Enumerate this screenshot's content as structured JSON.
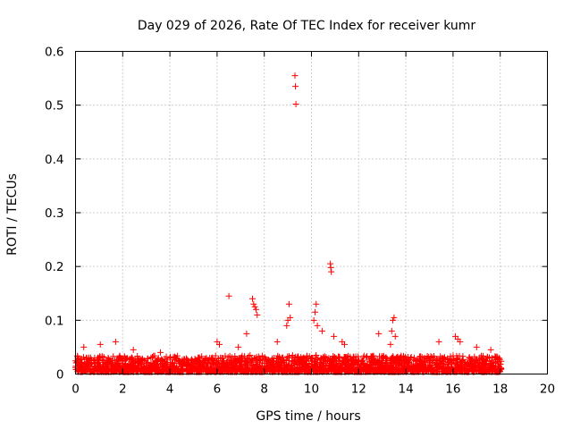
{
  "chart_data": {
    "type": "scatter",
    "title": "Day 029 of 2026, Rate Of TEC Index for receiver kumr",
    "xlabel": "GPS time / hours",
    "ylabel": "ROTI / TECUs",
    "xlim": [
      0,
      20
    ],
    "ylim": [
      0,
      0.6
    ],
    "xticks": [
      0,
      2,
      4,
      6,
      8,
      10,
      12,
      14,
      16,
      18,
      20
    ],
    "yticks": [
      0,
      0.1,
      0.2,
      0.3,
      0.4,
      0.5,
      0.6
    ],
    "grid": true,
    "marker": "plus",
    "color": "#ff0000",
    "series": [
      {
        "x": [
          0.0,
          0.2,
          0.4,
          0.6,
          0.8,
          1.0,
          1.2,
          1.4,
          1.6,
          1.8,
          2.0,
          2.2,
          2.4,
          2.6,
          2.8,
          3.0,
          3.2,
          3.4,
          3.6,
          3.8,
          4.0,
          4.2,
          4.4,
          4.6,
          4.8,
          5.0,
          5.2,
          5.4,
          5.6,
          5.8,
          6.0,
          6.2,
          6.4,
          6.6,
          6.8,
          7.0,
          7.2,
          7.4,
          7.6,
          7.8,
          8.0,
          8.2,
          8.4,
          8.6,
          8.8,
          9.0,
          9.2,
          9.4,
          9.6,
          9.8,
          10.0,
          10.2,
          10.4,
          10.6,
          10.8,
          11.0,
          11.2,
          11.4,
          11.6,
          11.8,
          12.0,
          12.2,
          12.4,
          12.6,
          12.8,
          13.0,
          13.2,
          13.4,
          13.6,
          13.8,
          14.0,
          14.2,
          14.4,
          14.6,
          14.8,
          15.0,
          15.2,
          15.4,
          15.6,
          15.8,
          16.0,
          16.2,
          16.4,
          16.6,
          16.8,
          17.0,
          17.2,
          17.4,
          17.6,
          17.8,
          18.0,
          0.35,
          1.05,
          1.7,
          2.45,
          3.6,
          6.0,
          6.1,
          6.5,
          6.9,
          7.25,
          7.5,
          7.55,
          7.6,
          7.65,
          7.7,
          8.55,
          8.95,
          9.0,
          9.05,
          9.1,
          9.3,
          9.32,
          9.34,
          10.1,
          10.15,
          10.2,
          10.25,
          10.45,
          10.8,
          10.82,
          10.84,
          10.95,
          11.3,
          11.4,
          12.85,
          13.35,
          13.4,
          13.45,
          13.5,
          13.55,
          15.4,
          16.1,
          16.2,
          16.3,
          17.0,
          17.6,
          0.1,
          0.5,
          0.9,
          1.3,
          1.9,
          2.3,
          2.7,
          3.1,
          3.5,
          3.9,
          4.3,
          4.7,
          5.1,
          5.5,
          5.9,
          6.3,
          6.7,
          7.1,
          7.9,
          8.3,
          8.7,
          9.5,
          9.9,
          10.6,
          11.1,
          11.5,
          11.9,
          12.3,
          12.7,
          13.1,
          13.9,
          14.3,
          14.7,
          15.1,
          15.5,
          15.9,
          16.5,
          16.9,
          17.3,
          17.7
        ],
        "y": [
          0.012,
          0.02,
          0.018,
          0.025,
          0.015,
          0.03,
          0.022,
          0.028,
          0.018,
          0.02,
          0.025,
          0.015,
          0.03,
          0.02,
          0.018,
          0.012,
          0.02,
          0.025,
          0.018,
          0.022,
          0.03,
          0.02,
          0.025,
          0.028,
          0.02,
          0.022,
          0.03,
          0.025,
          0.02,
          0.028,
          0.025,
          0.03,
          0.022,
          0.025,
          0.028,
          0.03,
          0.025,
          0.035,
          0.03,
          0.025,
          0.02,
          0.025,
          0.03,
          0.028,
          0.025,
          0.03,
          0.035,
          0.03,
          0.028,
          0.025,
          0.03,
          0.035,
          0.03,
          0.025,
          0.02,
          0.03,
          0.025,
          0.028,
          0.02,
          0.022,
          0.025,
          0.02,
          0.018,
          0.025,
          0.022,
          0.03,
          0.025,
          0.02,
          0.022,
          0.025,
          0.028,
          0.03,
          0.025,
          0.02,
          0.022,
          0.025,
          0.03,
          0.025,
          0.028,
          0.022,
          0.025,
          0.03,
          0.025,
          0.022,
          0.028,
          0.025,
          0.03,
          0.025,
          0.02,
          0.022,
          0.018,
          0.05,
          0.055,
          0.06,
          0.045,
          0.04,
          0.06,
          0.055,
          0.145,
          0.05,
          0.075,
          0.14,
          0.13,
          0.125,
          0.12,
          0.11,
          0.06,
          0.09,
          0.1,
          0.13,
          0.105,
          0.555,
          0.535,
          0.502,
          0.1,
          0.115,
          0.13,
          0.09,
          0.08,
          0.205,
          0.198,
          0.19,
          0.07,
          0.06,
          0.055,
          0.075,
          0.055,
          0.08,
          0.1,
          0.105,
          0.07,
          0.06,
          0.07,
          0.065,
          0.06,
          0.05,
          0.045,
          0.01,
          0.008,
          0.01,
          0.012,
          0.01,
          0.008,
          0.012,
          0.01,
          0.008,
          0.012,
          0.01,
          0.015,
          0.012,
          0.01,
          0.012,
          0.015,
          0.012,
          0.01,
          0.012,
          0.015,
          0.01,
          0.012,
          0.015,
          0.01,
          0.012,
          0.01,
          0.008,
          0.01,
          0.012,
          0.01,
          0.012,
          0.015,
          0.01,
          0.012,
          0.01,
          0.012,
          0.01,
          0.012,
          0.01,
          0.015
        ]
      }
    ]
  }
}
